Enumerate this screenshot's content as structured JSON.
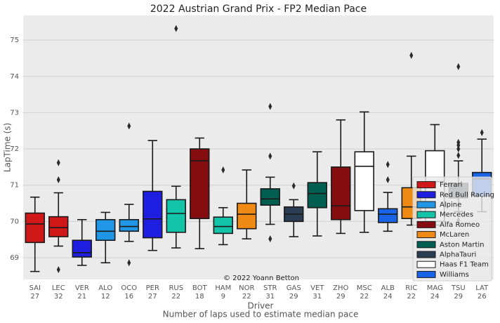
{
  "chart_data": {
    "type": "box",
    "title": "2022 Austrian Grand Prix - FP2 Median Pace",
    "x_label": "Driver",
    "x_sublabel": "Number of laps used to estimate median pace",
    "y_label": "LapTime (s)",
    "annotation": "© 2022 Yoann Betton",
    "categories": [
      "SAI",
      "LEC",
      "VER",
      "ALO",
      "OCO",
      "PER",
      "RUS",
      "BOT",
      "HAM",
      "NOR",
      "STR",
      "GAS",
      "VET",
      "ZHO",
      "MSC",
      "ALB",
      "RIC",
      "MAG",
      "TSU",
      "LAT"
    ],
    "laps": [
      27,
      32,
      21,
      12,
      16,
      27,
      22,
      18,
      9,
      22,
      31,
      29,
      31,
      29,
      22,
      24,
      22,
      24,
      29,
      26
    ],
    "boxes": [
      {
        "color": "#d01818",
        "whisker_low": 68.62,
        "q1": 69.42,
        "median": 69.93,
        "q3": 70.23,
        "whisker_high": 70.67,
        "outliers": []
      },
      {
        "color": "#d01818",
        "whisker_low": 69.32,
        "q1": 69.58,
        "median": 69.83,
        "q3": 70.13,
        "whisker_high": 70.79,
        "outliers": [
          71.62,
          71.15,
          68.67
        ]
      },
      {
        "color": "#1e1ee0",
        "whisker_low": 68.79,
        "q1": 69.02,
        "median": 69.14,
        "q3": 69.48,
        "whisker_high": 70.05,
        "outliers": []
      },
      {
        "color": "#2196e6",
        "whisker_low": 68.86,
        "q1": 69.48,
        "median": 69.73,
        "q3": 70.05,
        "whisker_high": 70.25,
        "outliers": []
      },
      {
        "color": "#2196e6",
        "whisker_low": 69.45,
        "q1": 69.73,
        "median": 69.86,
        "q3": 70.05,
        "whisker_high": 70.47,
        "outliers": [
          72.63,
          68.86
        ]
      },
      {
        "color": "#1e1ee0",
        "whisker_low": 69.2,
        "q1": 69.55,
        "median": 70.07,
        "q3": 70.83,
        "whisker_high": 72.23,
        "outliers": []
      },
      {
        "color": "#14c4a8",
        "whisker_low": 69.27,
        "q1": 69.7,
        "median": 70.22,
        "q3": 70.6,
        "whisker_high": 70.97,
        "outliers": [
          75.32
        ]
      },
      {
        "color": "#850d10",
        "whisker_low": 69.25,
        "q1": 70.08,
        "median": 71.67,
        "q3": 72.0,
        "whisker_high": 72.3,
        "outliers": []
      },
      {
        "color": "#14c4a8",
        "whisker_low": 69.36,
        "q1": 69.67,
        "median": 69.86,
        "q3": 70.12,
        "whisker_high": 70.38,
        "outliers": [
          71.42
        ]
      },
      {
        "color": "#ef8a14",
        "whisker_low": 69.52,
        "q1": 69.8,
        "median": 70.2,
        "q3": 70.5,
        "whisker_high": 71.42,
        "outliers": []
      },
      {
        "color": "#005f50",
        "whisker_low": 69.92,
        "q1": 70.45,
        "median": 70.62,
        "q3": 70.9,
        "whisker_high": 71.22,
        "outliers": [
          73.17,
          71.8,
          69.52
        ]
      },
      {
        "color": "#2b3d52",
        "whisker_low": 69.58,
        "q1": 70.0,
        "median": 70.2,
        "q3": 70.4,
        "whisker_high": 70.6,
        "outliers": [
          70.98
        ]
      },
      {
        "color": "#005f50",
        "whisker_low": 69.6,
        "q1": 70.38,
        "median": 70.77,
        "q3": 71.07,
        "whisker_high": 71.92,
        "outliers": []
      },
      {
        "color": "#850d10",
        "whisker_low": 69.67,
        "q1": 70.05,
        "median": 70.43,
        "q3": 71.5,
        "whisker_high": 72.8,
        "outliers": []
      },
      {
        "color": "#ffffff",
        "whisker_low": 69.7,
        "q1": 70.3,
        "median": 71.52,
        "q3": 71.92,
        "whisker_high": 73.02,
        "outliers": []
      },
      {
        "color": "#1964e6",
        "whisker_low": 69.73,
        "q1": 69.97,
        "median": 70.2,
        "q3": 70.35,
        "whisker_high": 70.8,
        "outliers": [
          71.57,
          71.15
        ]
      },
      {
        "color": "#ef8a14",
        "whisker_low": 69.9,
        "q1": 70.08,
        "median": 70.4,
        "q3": 70.93,
        "whisker_high": 71.8,
        "outliers": [
          74.58
        ]
      },
      {
        "color": "#ffffff",
        "whisker_low": 69.9,
        "q1": 70.0,
        "median": 71.1,
        "q3": 71.95,
        "whisker_high": 72.67,
        "outliers": []
      },
      {
        "color": "#2b3d52",
        "whisker_low": 70.27,
        "q1": 70.65,
        "median": 70.9,
        "q3": 71.05,
        "whisker_high": 71.67,
        "outliers": [
          74.27,
          72.18,
          72.1,
          72.0,
          71.82,
          70.03
        ]
      },
      {
        "color": "#1964e6",
        "whisker_low": 70.27,
        "q1": 70.7,
        "median": 71.17,
        "q3": 71.35,
        "whisker_high": 72.27,
        "outliers": [
          72.45
        ]
      }
    ],
    "legend": [
      {
        "name": "Ferrari",
        "color": "#d01818"
      },
      {
        "name": "Red Bull Racing",
        "color": "#1e1ee0"
      },
      {
        "name": "Alpine",
        "color": "#2196e6"
      },
      {
        "name": "Mercedes",
        "color": "#14c4a8"
      },
      {
        "name": "Alfa Romeo",
        "color": "#850d10"
      },
      {
        "name": "McLaren",
        "color": "#ef8a14"
      },
      {
        "name": "Aston Martin",
        "color": "#005f50"
      },
      {
        "name": "AlphaTauri",
        "color": "#2b3d52"
      },
      {
        "name": "Haas F1 Team",
        "color": "#ffffff"
      },
      {
        "name": "Williams",
        "color": "#1964e6"
      }
    ],
    "ylim": [
      68.4,
      75.68
    ],
    "yticks": [
      69,
      70,
      71,
      72,
      73,
      74,
      75
    ],
    "grid": true
  }
}
